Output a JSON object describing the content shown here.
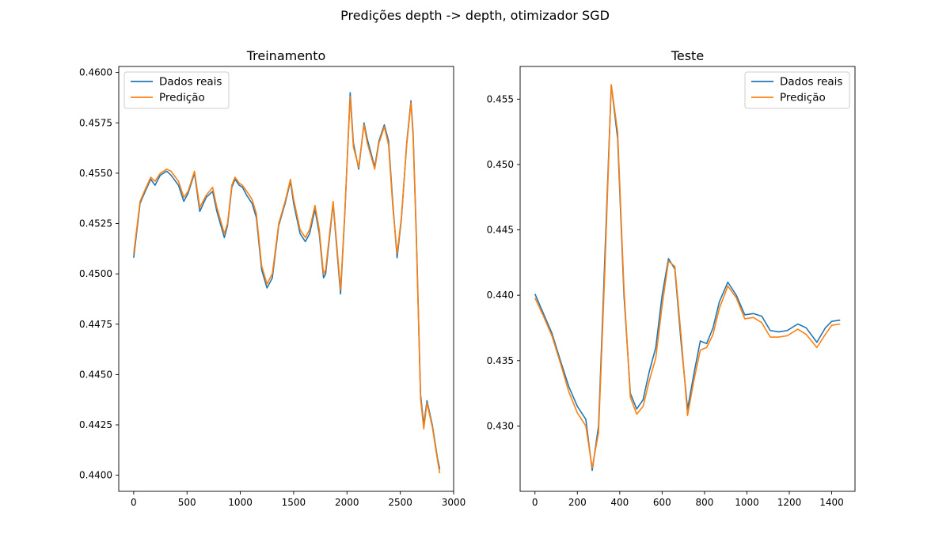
{
  "figure": {
    "suptitle": "Predições depth -> depth, otimizador SGD"
  },
  "chart_data": [
    {
      "type": "line",
      "title": "Treinamento",
      "xlabel": "",
      "ylabel": "",
      "xlim": [
        -140,
        3000
      ],
      "ylim": [
        0.4392,
        0.4603
      ],
      "xticks": [
        0,
        500,
        1000,
        1500,
        2000,
        2500,
        3000
      ],
      "yticks": [
        0.44,
        0.4425,
        0.445,
        0.4475,
        0.45,
        0.4525,
        0.455,
        0.4575,
        0.46
      ],
      "ytick_labels": [
        "0.4400",
        "0.4425",
        "0.4450",
        "0.4475",
        "0.4500",
        "0.4525",
        "0.4550",
        "0.4575",
        "0.4600"
      ],
      "legend": "top-left",
      "series": [
        {
          "name": "Dados reais",
          "color": "#1f77b4",
          "x": [
            0,
            60,
            100,
            160,
            200,
            250,
            310,
            350,
            420,
            470,
            510,
            570,
            620,
            680,
            740,
            780,
            850,
            880,
            920,
            950,
            990,
            1020,
            1060,
            1110,
            1150,
            1200,
            1250,
            1300,
            1360,
            1420,
            1470,
            1500,
            1560,
            1610,
            1650,
            1700,
            1740,
            1780,
            1800,
            1870,
            1910,
            1940,
            1980,
            2030,
            2060,
            2110,
            2160,
            2190,
            2260,
            2300,
            2350,
            2390,
            2430,
            2470,
            2510,
            2560,
            2600,
            2620,
            2650,
            2690,
            2720,
            2750,
            2800,
            2850,
            2870
          ],
          "y": [
            0.4508,
            0.4535,
            0.454,
            0.4547,
            0.4544,
            0.4549,
            0.4551,
            0.4549,
            0.4544,
            0.4536,
            0.454,
            0.455,
            0.4531,
            0.4538,
            0.4541,
            0.4531,
            0.4518,
            0.4524,
            0.4543,
            0.4547,
            0.4544,
            0.4543,
            0.4539,
            0.4535,
            0.4528,
            0.4502,
            0.4493,
            0.4498,
            0.4524,
            0.4535,
            0.4546,
            0.4535,
            0.452,
            0.4516,
            0.452,
            0.4532,
            0.452,
            0.4498,
            0.45,
            0.4535,
            0.4509,
            0.449,
            0.453,
            0.459,
            0.4565,
            0.4552,
            0.4575,
            0.4567,
            0.4553,
            0.4566,
            0.4574,
            0.4566,
            0.4535,
            0.4508,
            0.4527,
            0.4565,
            0.4586,
            0.457,
            0.452,
            0.444,
            0.4425,
            0.4437,
            0.4425,
            0.4408,
            0.4403
          ]
        },
        {
          "name": "Predição",
          "color": "#ff7f0e",
          "x": [
            0,
            60,
            100,
            160,
            200,
            250,
            310,
            350,
            420,
            470,
            510,
            570,
            620,
            680,
            740,
            780,
            850,
            880,
            920,
            950,
            990,
            1020,
            1060,
            1110,
            1150,
            1200,
            1250,
            1300,
            1360,
            1420,
            1470,
            1500,
            1560,
            1610,
            1650,
            1700,
            1740,
            1780,
            1800,
            1870,
            1910,
            1940,
            1980,
            2030,
            2060,
            2110,
            2160,
            2190,
            2260,
            2300,
            2350,
            2390,
            2430,
            2470,
            2510,
            2560,
            2600,
            2620,
            2650,
            2690,
            2720,
            2750,
            2800,
            2850,
            2870
          ],
          "y": [
            0.451,
            0.4536,
            0.4541,
            0.4548,
            0.4546,
            0.455,
            0.4552,
            0.4551,
            0.4546,
            0.4538,
            0.4541,
            0.4551,
            0.4533,
            0.4539,
            0.4543,
            0.4533,
            0.452,
            0.4525,
            0.4544,
            0.4548,
            0.4545,
            0.4544,
            0.4541,
            0.4537,
            0.453,
            0.4504,
            0.4495,
            0.45,
            0.4525,
            0.4536,
            0.4547,
            0.4537,
            0.4522,
            0.4518,
            0.4522,
            0.4534,
            0.4522,
            0.45,
            0.4502,
            0.4536,
            0.4511,
            0.4492,
            0.4531,
            0.4588,
            0.4563,
            0.4553,
            0.4574,
            0.4565,
            0.4552,
            0.4565,
            0.4573,
            0.4564,
            0.4533,
            0.451,
            0.4528,
            0.4564,
            0.4585,
            0.4568,
            0.4518,
            0.4438,
            0.4423,
            0.4436,
            0.4424,
            0.4407,
            0.4401
          ]
        }
      ]
    },
    {
      "type": "line",
      "title": "Teste",
      "xlabel": "",
      "ylabel": "",
      "xlim": [
        -70,
        1510
      ],
      "ylim": [
        0.425,
        0.4575
      ],
      "xticks": [
        0,
        200,
        400,
        600,
        800,
        1000,
        1200,
        1400
      ],
      "yticks": [
        0.43,
        0.435,
        0.44,
        0.445,
        0.45,
        0.455
      ],
      "ytick_labels": [
        "0.430",
        "0.435",
        "0.440",
        "0.445",
        "0.450",
        "0.455"
      ],
      "legend": "top-right",
      "series": [
        {
          "name": "Dados reais",
          "color": "#1f77b4",
          "x": [
            0,
            40,
            80,
            120,
            160,
            200,
            240,
            270,
            300,
            330,
            360,
            390,
            420,
            450,
            480,
            510,
            540,
            570,
            600,
            630,
            660,
            690,
            720,
            750,
            780,
            810,
            840,
            870,
            910,
            950,
            990,
            1030,
            1070,
            1110,
            1150,
            1190,
            1240,
            1280,
            1330,
            1370,
            1400,
            1440
          ],
          "y": [
            0.4401,
            0.4386,
            0.4371,
            0.435,
            0.433,
            0.4315,
            0.4305,
            0.4266,
            0.43,
            0.443,
            0.4561,
            0.452,
            0.44,
            0.4325,
            0.4313,
            0.432,
            0.4342,
            0.436,
            0.44,
            0.4428,
            0.442,
            0.4363,
            0.4313,
            0.434,
            0.4365,
            0.4363,
            0.4375,
            0.4395,
            0.441,
            0.44,
            0.4385,
            0.4386,
            0.4384,
            0.4373,
            0.4372,
            0.4373,
            0.4378,
            0.4375,
            0.4364,
            0.4375,
            0.438,
            0.4381
          ]
        },
        {
          "name": "Predição",
          "color": "#ff7f0e",
          "x": [
            0,
            40,
            80,
            120,
            160,
            200,
            240,
            270,
            300,
            330,
            360,
            390,
            420,
            450,
            480,
            510,
            540,
            570,
            600,
            630,
            660,
            690,
            720,
            750,
            780,
            810,
            840,
            870,
            910,
            950,
            990,
            1030,
            1070,
            1110,
            1150,
            1190,
            1240,
            1280,
            1330,
            1370,
            1400,
            1440
          ],
          "y": [
            0.4398,
            0.4384,
            0.4369,
            0.4348,
            0.4326,
            0.431,
            0.43,
            0.4268,
            0.4295,
            0.442,
            0.4561,
            0.4525,
            0.4405,
            0.4322,
            0.4309,
            0.4315,
            0.4335,
            0.4352,
            0.4392,
            0.4426,
            0.4422,
            0.4368,
            0.4308,
            0.4335,
            0.4358,
            0.436,
            0.437,
            0.439,
            0.4407,
            0.4398,
            0.4382,
            0.4383,
            0.4379,
            0.4368,
            0.4368,
            0.4369,
            0.4374,
            0.437,
            0.436,
            0.437,
            0.4377,
            0.4378
          ]
        }
      ]
    }
  ]
}
